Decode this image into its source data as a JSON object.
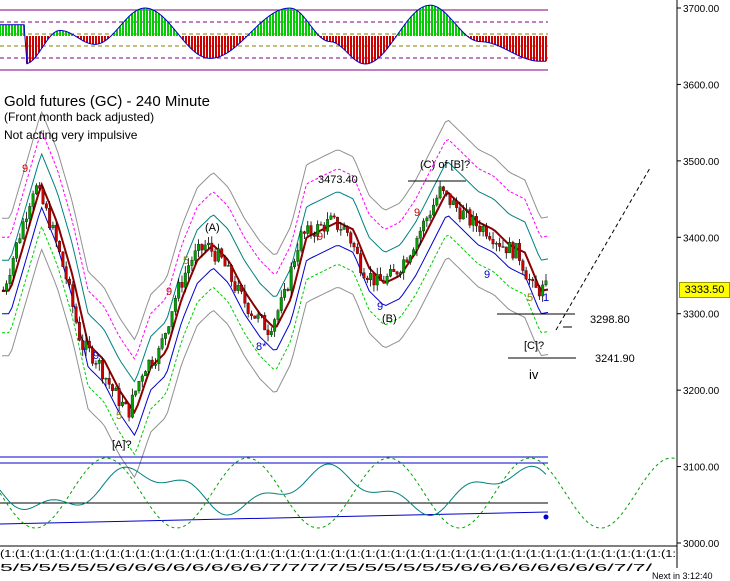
{
  "chart_data": {
    "type": "candlestick",
    "title": "Gold futures (GC) - 240 Minute",
    "subtitle": "(Front month back adjusted)",
    "note": "Not acting very impulsive",
    "y_axis_ticks": [
      "3700.00",
      "3600.00",
      "3500.00",
      "3400.00",
      "3300.00",
      "3200.00",
      "3100.00",
      "3000.00"
    ],
    "ylim": [
      3000,
      3700
    ],
    "last_price": "3333.50",
    "x_tick_labels": [
      "(1:(1:(1:",
      "5/5/5/5/5/5/6/6/6/6/6/6/6/6/7/7/7/7/"
    ],
    "countdown": "Next in 3:12:40",
    "annotations": [
      {
        "text": "[A]?",
        "type": "wave-label"
      },
      {
        "text": "(A)",
        "type": "wave-label"
      },
      {
        "text": "(B)",
        "type": "wave-label"
      },
      {
        "text": "(C) of [B]?",
        "type": "wave-label"
      },
      {
        "text": "3473.40",
        "type": "price-label"
      },
      {
        "text": "3298.80",
        "type": "price-label"
      },
      {
        "text": "[C]?",
        "type": "wave-label"
      },
      {
        "text": "3241.90",
        "type": "price-label"
      },
      {
        "text": "iv",
        "type": "wave-label"
      },
      {
        "text": "9",
        "type": "count"
      },
      {
        "text": "5",
        "type": "count"
      },
      {
        "text": "1",
        "type": "count"
      },
      {
        "text": "8*",
        "type": "count"
      }
    ],
    "price_path": [
      3330,
      3400,
      3470,
      3420,
      3350,
      3260,
      3240,
      3200,
      3170,
      3230,
      3250,
      3320,
      3370,
      3390,
      3370,
      3330,
      3300,
      3280,
      3320,
      3400,
      3410,
      3420,
      3410,
      3360,
      3340,
      3350,
      3380,
      3420,
      3460,
      3440,
      3420,
      3410,
      3390,
      3380,
      3330,
      3333.5
    ],
    "colors": {
      "bull_candle": "#00a000",
      "bear_candle": "#cc0000",
      "ma_line": "#8b0000",
      "band_blue": "#0000cc",
      "band_teal": "#008080",
      "band_gray": "#909090",
      "band_magenta": "#ff00ff",
      "band_green": "#00cc00",
      "osc_green": "#00cc00",
      "osc_red": "#cc0000",
      "hline_purple": "#800080",
      "hline_olive": "#808000",
      "cycle_green": "#00a000"
    }
  }
}
